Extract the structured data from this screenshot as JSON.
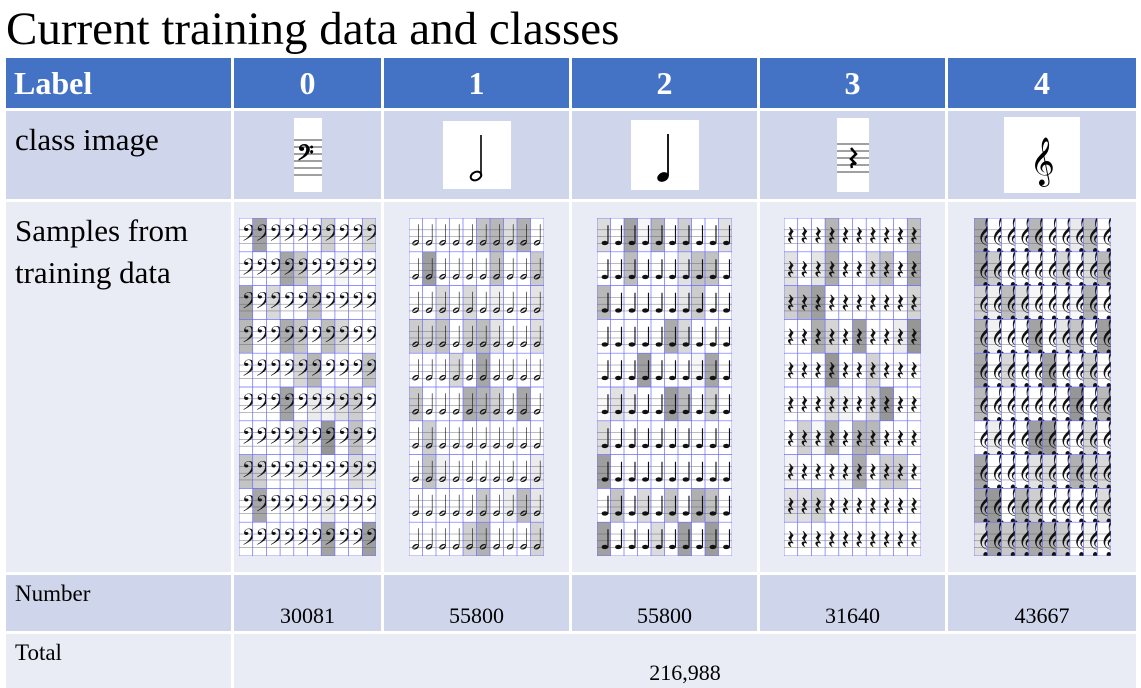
{
  "title": "Current training data and classes",
  "header": {
    "label": "Label",
    "classes": [
      "0",
      "1",
      "2",
      "3",
      "4"
    ]
  },
  "rows": {
    "class_image_label": "class image",
    "samples_label": "Samples from training data",
    "number_label": "Number",
    "total_label": "Total"
  },
  "class_icons": [
    "bass-clef-icon",
    "half-note-icon",
    "quarter-note-icon",
    "quarter-rest-icon",
    "treble-clef-icon"
  ],
  "class_glyphs": [
    "𝄢",
    "𝅗𝅥",
    "♩",
    "𝄽",
    "𝄞"
  ],
  "numbers": [
    "30081",
    "55800",
    "55800",
    "31640",
    "43667"
  ],
  "total": "216,988",
  "colors": {
    "header_bg": "#4472c4",
    "band_dark": "#cfd5ea",
    "band_light": "#e9ebf5",
    "grid_line": "#6b6bff"
  }
}
